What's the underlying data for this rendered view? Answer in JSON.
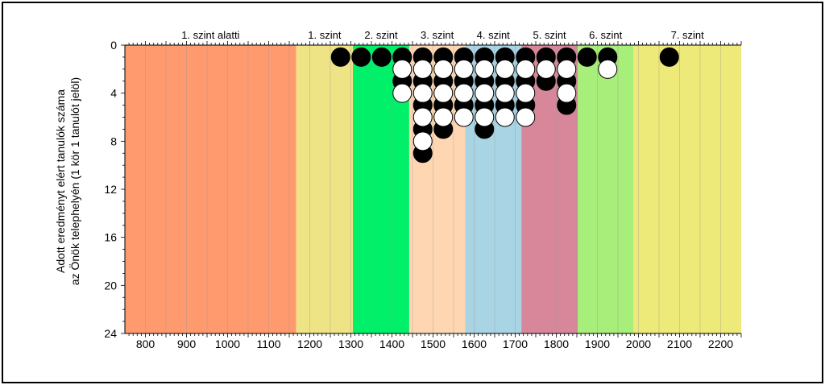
{
  "chart_data": {
    "type": "scatter",
    "ylabel_lines": [
      "Adott eredményt elért tanulók száma",
      "az Önök telephelyén (1 kör 1 tanulót jelöl)"
    ],
    "xlim": [
      750,
      2250
    ],
    "ylim": [
      0,
      24
    ],
    "x_ticks": [
      800,
      900,
      1000,
      1100,
      1200,
      1300,
      1400,
      1500,
      1600,
      1700,
      1800,
      1900,
      2000,
      2100,
      2200
    ],
    "y_ticks": [
      0,
      4,
      8,
      12,
      16,
      20,
      24
    ],
    "bands": [
      {
        "label": "1. szint alatti",
        "from": 750,
        "to": 1167,
        "color": "#FF9A6E"
      },
      {
        "label": "1. szint",
        "from": 1167,
        "to": 1305,
        "color": "#EEE385"
      },
      {
        "label": "2. szint",
        "from": 1305,
        "to": 1442,
        "color": "#00F06A"
      },
      {
        "label": "3. szint",
        "from": 1442,
        "to": 1578,
        "color": "#FED7B2"
      },
      {
        "label": "4. szint",
        "from": 1578,
        "to": 1715,
        "color": "#A9D4E4"
      },
      {
        "label": "5. szint",
        "from": 1715,
        "to": 1852,
        "color": "#D8879A"
      },
      {
        "label": "6. szint",
        "from": 1852,
        "to": 1988,
        "color": "#A8EE7A"
      },
      {
        "label": "7. szint",
        "from": 1988,
        "to": 2250,
        "color": "#EEEA7A"
      }
    ],
    "series": [
      {
        "color": "black",
        "points": [
          {
            "x": 1275,
            "y": 1
          },
          {
            "x": 1325,
            "y": 1
          },
          {
            "x": 1375,
            "y": 1
          },
          {
            "x": 1425,
            "y": 1
          },
          {
            "x": 1425,
            "y": 3
          },
          {
            "x": 1475,
            "y": 1
          },
          {
            "x": 1475,
            "y": 3
          },
          {
            "x": 1475,
            "y": 5
          },
          {
            "x": 1475,
            "y": 7
          },
          {
            "x": 1475,
            "y": 9
          },
          {
            "x": 1525,
            "y": 1
          },
          {
            "x": 1525,
            "y": 3
          },
          {
            "x": 1525,
            "y": 5
          },
          {
            "x": 1525,
            "y": 7
          },
          {
            "x": 1575,
            "y": 1
          },
          {
            "x": 1575,
            "y": 3
          },
          {
            "x": 1575,
            "y": 5
          },
          {
            "x": 1625,
            "y": 1
          },
          {
            "x": 1625,
            "y": 3
          },
          {
            "x": 1625,
            "y": 5
          },
          {
            "x": 1625,
            "y": 7
          },
          {
            "x": 1675,
            "y": 1
          },
          {
            "x": 1675,
            "y": 3
          },
          {
            "x": 1675,
            "y": 5
          },
          {
            "x": 1725,
            "y": 1
          },
          {
            "x": 1725,
            "y": 3
          },
          {
            "x": 1725,
            "y": 5
          },
          {
            "x": 1775,
            "y": 1
          },
          {
            "x": 1775,
            "y": 3
          },
          {
            "x": 1825,
            "y": 1
          },
          {
            "x": 1825,
            "y": 3
          },
          {
            "x": 1825,
            "y": 5
          },
          {
            "x": 1875,
            "y": 1
          },
          {
            "x": 1925,
            "y": 1
          },
          {
            "x": 2075,
            "y": 1
          }
        ]
      },
      {
        "color": "white",
        "points": [
          {
            "x": 1425,
            "y": 2
          },
          {
            "x": 1425,
            "y": 4
          },
          {
            "x": 1475,
            "y": 2
          },
          {
            "x": 1475,
            "y": 4
          },
          {
            "x": 1475,
            "y": 6
          },
          {
            "x": 1475,
            "y": 8
          },
          {
            "x": 1525,
            "y": 2
          },
          {
            "x": 1525,
            "y": 4
          },
          {
            "x": 1525,
            "y": 6
          },
          {
            "x": 1575,
            "y": 2
          },
          {
            "x": 1575,
            "y": 4
          },
          {
            "x": 1575,
            "y": 6
          },
          {
            "x": 1625,
            "y": 2
          },
          {
            "x": 1625,
            "y": 4
          },
          {
            "x": 1625,
            "y": 6
          },
          {
            "x": 1675,
            "y": 2
          },
          {
            "x": 1675,
            "y": 4
          },
          {
            "x": 1675,
            "y": 6
          },
          {
            "x": 1725,
            "y": 2
          },
          {
            "x": 1725,
            "y": 4
          },
          {
            "x": 1725,
            "y": 6
          },
          {
            "x": 1775,
            "y": 2
          },
          {
            "x": 1825,
            "y": 2
          },
          {
            "x": 1825,
            "y": 4
          },
          {
            "x": 1925,
            "y": 2
          }
        ]
      }
    ]
  }
}
